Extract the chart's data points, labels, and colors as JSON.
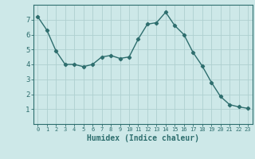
{
  "x": [
    0,
    1,
    2,
    3,
    4,
    5,
    6,
    7,
    8,
    9,
    10,
    11,
    12,
    13,
    14,
    15,
    16,
    17,
    18,
    19,
    20,
    21,
    22,
    23
  ],
  "y": [
    7.2,
    6.3,
    4.9,
    4.0,
    4.0,
    3.85,
    4.0,
    4.5,
    4.6,
    4.4,
    4.5,
    5.7,
    6.7,
    6.8,
    7.5,
    6.6,
    6.0,
    4.8,
    3.9,
    2.8,
    1.85,
    1.3,
    1.15,
    1.05
  ],
  "bg_color": "#cde8e8",
  "line_color": "#2e6e6e",
  "marker": "D",
  "marker_size": 2.2,
  "line_width": 1.0,
  "xlabel": "Humidex (Indice chaleur)",
  "xlabel_fontsize": 7,
  "grid_color": "#aed0d0",
  "tick_color": "#2e6e6e",
  "xlim": [
    -0.5,
    23.5
  ],
  "ylim": [
    0,
    8
  ],
  "yticks": [
    1,
    2,
    3,
    4,
    5,
    6,
    7
  ],
  "xticks": [
    0,
    1,
    2,
    3,
    4,
    5,
    6,
    7,
    8,
    9,
    10,
    11,
    12,
    13,
    14,
    15,
    16,
    17,
    18,
    19,
    20,
    21,
    22,
    23
  ]
}
